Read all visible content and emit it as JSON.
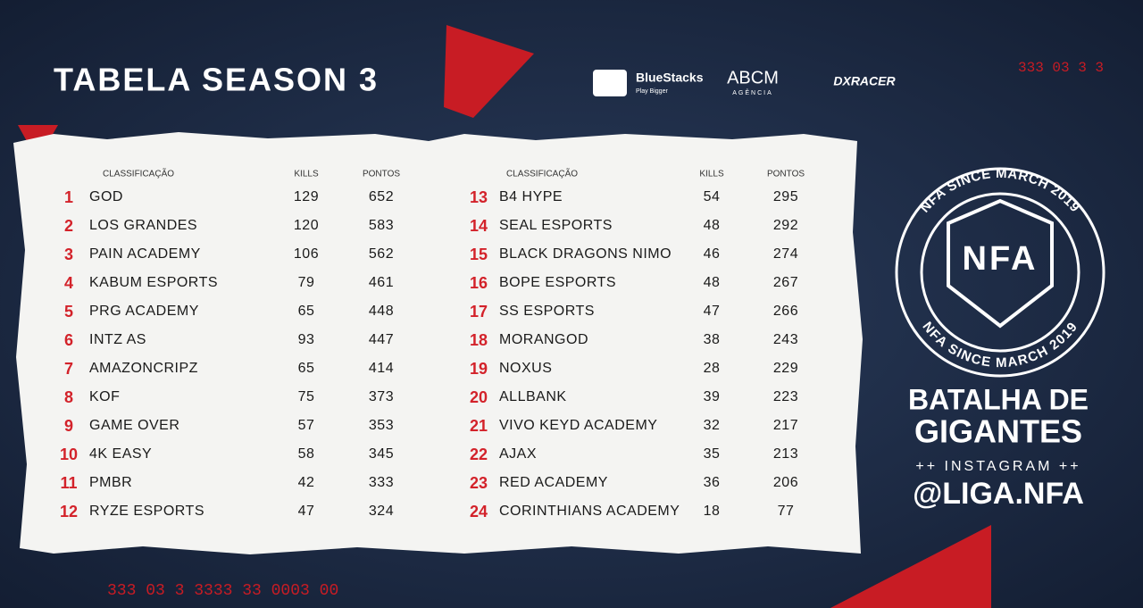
{
  "header": {
    "title": "TABELA SEASON 3",
    "code_top": "333 03 3 3",
    "code_bottom": "333 03 3 3333 33 0003 00"
  },
  "sponsors": {
    "bluestacks": "BlueStacks",
    "bluestacks_tagline": "Play Bigger",
    "abcm": "ABCM",
    "abcm_sub": "AGÊNCIA",
    "dxracer": "DXRACER"
  },
  "tables": [
    {
      "columns": [
        "CLASSIFICAÇÃO",
        "KILLS",
        "PONTOS"
      ],
      "rows": [
        [
          1,
          "GOD",
          129,
          652
        ],
        [
          2,
          "LOS GRANDES",
          120,
          583
        ],
        [
          3,
          "PAIN ACADEMY",
          106,
          562
        ],
        [
          4,
          "KABUM ESPORTS",
          79,
          461
        ],
        [
          5,
          "PRG ACADEMY",
          65,
          448
        ],
        [
          6,
          "INTZ AS",
          93,
          447
        ],
        [
          7,
          "AMAZONCRIPZ",
          65,
          414
        ],
        [
          8,
          "KOF",
          75,
          373
        ],
        [
          9,
          "GAME OVER",
          57,
          353
        ],
        [
          10,
          "4K EASY",
          58,
          345
        ],
        [
          11,
          "PMBR",
          42,
          333
        ],
        [
          12,
          "RYZE ESPORTS",
          47,
          324
        ]
      ]
    },
    {
      "columns": [
        "CLASSIFICAÇÃO",
        "KILLS",
        "PONTOS"
      ],
      "rows": [
        [
          13,
          "B4 HYPE",
          54,
          295
        ],
        [
          14,
          "SEAL ESPORTS",
          48,
          292
        ],
        [
          15,
          "BLACK DRAGONS NIMO",
          46,
          274
        ],
        [
          16,
          "BOPE ESPORTS",
          48,
          267
        ],
        [
          17,
          "SS ESPORTS",
          47,
          266
        ],
        [
          18,
          "MORANGOD",
          38,
          243
        ],
        [
          19,
          "NOXUS",
          28,
          229
        ],
        [
          20,
          "ALLBANK",
          39,
          223
        ],
        [
          21,
          "VIVO KEYD ACADEMY",
          32,
          217
        ],
        [
          22,
          "AJAX",
          35,
          213
        ],
        [
          23,
          "RED ACADEMY",
          36,
          206
        ],
        [
          24,
          "CORINTHIANS ACADEMY",
          18,
          77
        ]
      ]
    }
  ],
  "badge": {
    "ring": [
      "NFA SINCE MARCH 2019",
      "NFA SINCE MARCH 2019"
    ],
    "logo": "NFA"
  },
  "promo": {
    "line1": "BATALHA DE",
    "line2": "GIGANTES",
    "instagram": "++ INSTAGRAM ++",
    "handle": "@LIGA.NFA"
  }
}
